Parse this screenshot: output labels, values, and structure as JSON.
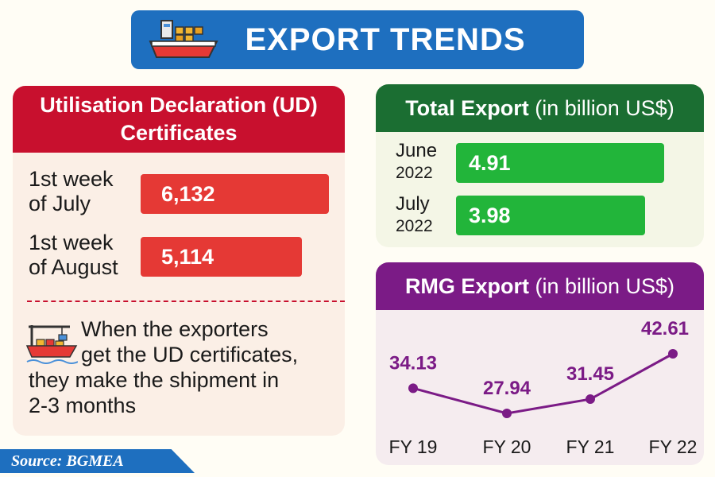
{
  "title": "EXPORT TRENDS",
  "ud_panel": {
    "heading_line1": "Utilisation Declaration (UD)",
    "heading_line2": "Certificates",
    "rows": [
      {
        "label_line1": "1st week",
        "label_line2": "of July",
        "value": "6,132"
      },
      {
        "label_line1": "1st week",
        "label_line2": "of August",
        "value": "5,114"
      }
    ],
    "note_lines": [
      "When the exporters",
      "get the UD certificates,",
      "they make the shipment in",
      "2-3 months"
    ]
  },
  "total_export": {
    "heading_bold": "Total Export",
    "heading_unit": "(in billion US$)",
    "rows": [
      {
        "month": "June",
        "year": "2022",
        "value": "4.91"
      },
      {
        "month": "July",
        "year": "2022",
        "value": "3.98"
      }
    ]
  },
  "rmg_export": {
    "heading_bold": "RMG Export",
    "heading_unit": "(in billion US$)"
  },
  "source": "Source: BGMEA",
  "colors": {
    "title_blue": "#1e6fbf",
    "ud_red": "#c8102e",
    "bar_red": "#e53935",
    "total_green": "#1b6e32",
    "bar_green": "#22b53a",
    "rmg_purple": "#7b1b86"
  },
  "icons": [
    "cargo-ship-icon",
    "port-crane-ship-icon"
  ],
  "chart_data": [
    {
      "type": "bar",
      "title": "Utilisation Declaration (UD) Certificates",
      "categories": [
        "1st week of July",
        "1st week of August"
      ],
      "values": [
        6132,
        5114
      ],
      "labels": [
        "6,132",
        "5,114"
      ]
    },
    {
      "type": "bar",
      "title": "Total Export (in billion US$)",
      "categories": [
        "June 2022",
        "July 2022"
      ],
      "values": [
        4.91,
        3.98
      ]
    },
    {
      "type": "line",
      "title": "RMG Export (in billion US$)",
      "categories": [
        "FY 19",
        "FY 20",
        "FY 21",
        "FY 22"
      ],
      "values": [
        34.13,
        27.94,
        31.45,
        42.61
      ],
      "labels": [
        "34.13",
        "27.94",
        "31.45",
        "42.61"
      ],
      "grid": false
    }
  ]
}
